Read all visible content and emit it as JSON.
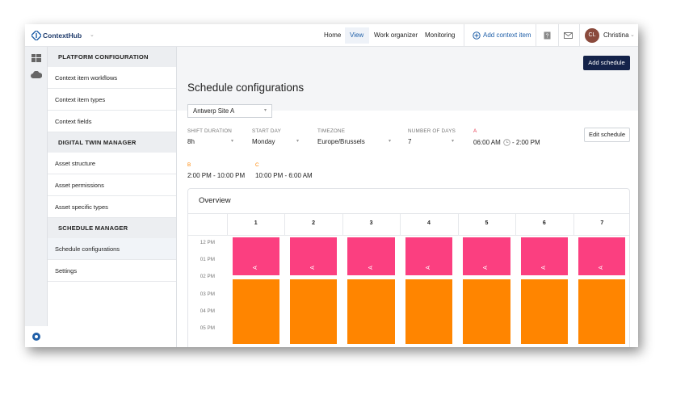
{
  "header": {
    "logo": "ContextHub",
    "nav": [
      "Home",
      "View",
      "Work organizer",
      "Monitoring"
    ],
    "add_button": "Add context item",
    "avatar_initials": "CL",
    "user": "Christina"
  },
  "sidebar": {
    "sections": [
      {
        "title": "PLATFORM CONFIGURATION",
        "items": [
          "Context item workflows",
          "Context item types",
          "Context fields"
        ]
      },
      {
        "title": "DIGITAL TWIN MANAGER",
        "items": [
          "Asset structure",
          "Asset permissions",
          "Asset specific types"
        ]
      },
      {
        "title": "SCHEDULE MANAGER",
        "items": [
          "Schedule configurations",
          "Settings"
        ]
      }
    ]
  },
  "main": {
    "action_button": "Add schedule",
    "title": "Schedule configurations",
    "site": "Antwerp Site A",
    "fields": [
      {
        "label": "SHIFT DURATION",
        "value": "8h"
      },
      {
        "label": "START DAY",
        "value": "Monday"
      },
      {
        "label": "TIMEZONE",
        "value": "Europe/Brussels"
      },
      {
        "label": "NUMBER OF DAYS",
        "value": "7"
      }
    ],
    "edit_button": "Edit schedule",
    "shift_a": {
      "name": "A",
      "start": "06:00 AM",
      "end": "- 2:00 PM"
    },
    "shift_b": {
      "name": "B",
      "time": "2:00 PM - 10:00 PM"
    },
    "shift_c": {
      "name": "C",
      "time": "10:00 PM - 6:00 AM"
    }
  },
  "overview": {
    "title": "Overview",
    "columns": [
      "1",
      "2",
      "3",
      "4",
      "5",
      "6",
      "7"
    ],
    "times": [
      "12 PM",
      "01 PM",
      "02 PM",
      "03 PM",
      "04 PM",
      "05 PM"
    ]
  }
}
